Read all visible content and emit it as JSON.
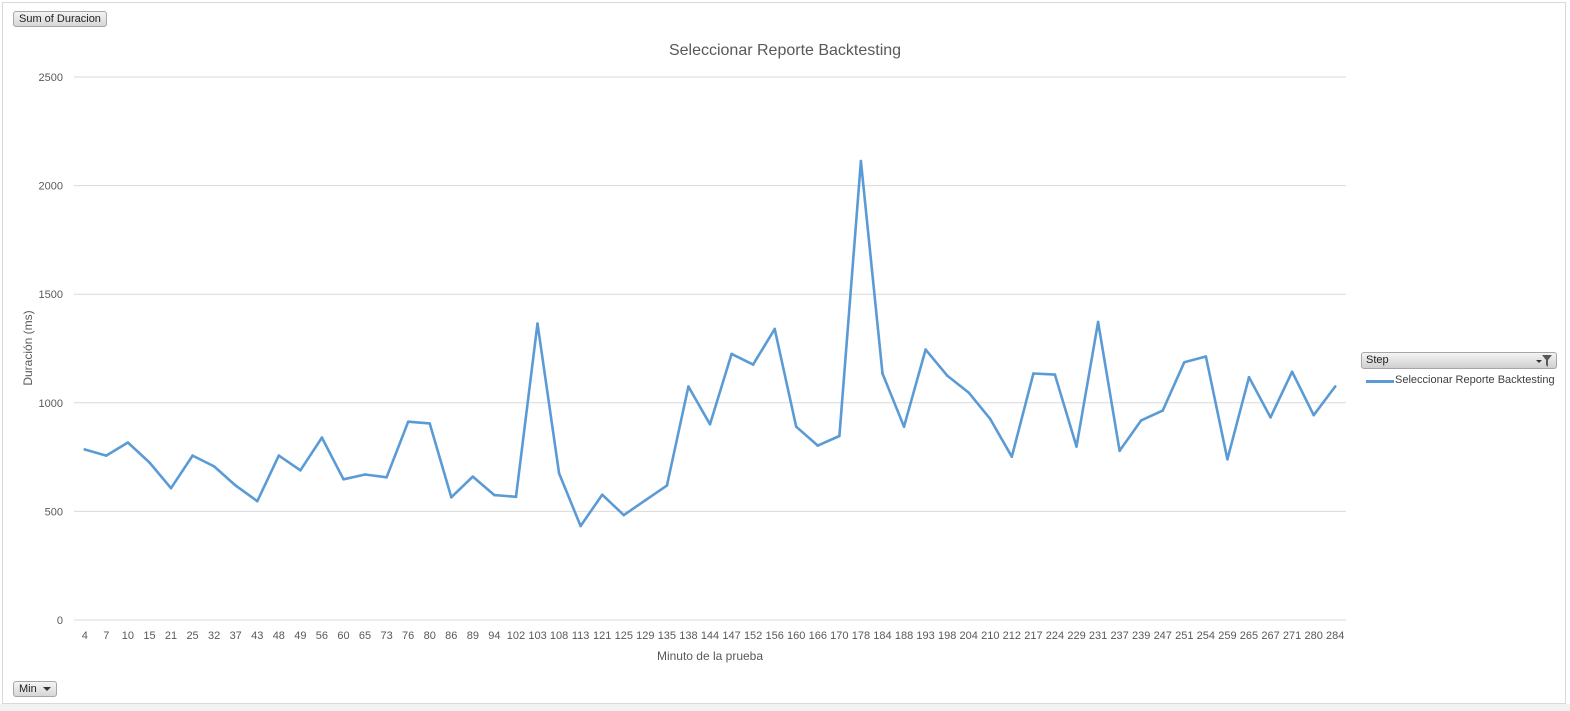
{
  "controls": {
    "value_field": "Sum of Duracion",
    "axis_field": "Min",
    "legend_field": "Step"
  },
  "colors": {
    "series": "#5b9bd5",
    "grid": "#d9d9d9"
  },
  "chart_data": {
    "type": "line",
    "title": "Seleccionar Reporte Backtesting",
    "xlabel": "Minuto de la prueba",
    "ylabel": "Duración (ms)",
    "ylim": [
      0,
      2500
    ],
    "yticks": [
      0,
      500,
      1000,
      1500,
      2000,
      2500
    ],
    "grid": true,
    "legend_position": "right",
    "categories": [
      "4",
      "7",
      "10",
      "15",
      "21",
      "25",
      "32",
      "37",
      "43",
      "48",
      "49",
      "56",
      "60",
      "65",
      "73",
      "76",
      "80",
      "86",
      "89",
      "94",
      "102",
      "103",
      "108",
      "113",
      "121",
      "125",
      "129",
      "135",
      "138",
      "144",
      "147",
      "152",
      "156",
      "160",
      "166",
      "170",
      "178",
      "184",
      "188",
      "193",
      "198",
      "204",
      "210",
      "212",
      "217",
      "224",
      "229",
      "231",
      "237",
      "239",
      "247",
      "251",
      "254",
      "259",
      "265",
      "267",
      "271",
      "280",
      "284"
    ],
    "series": [
      {
        "name": "Seleccionar Reporte Backtesting",
        "values": [
          785,
          757,
          817,
          725,
          607,
          757,
          707,
          619,
          547,
          757,
          689,
          840,
          648,
          670,
          657,
          913,
          905,
          565,
          660,
          575,
          567,
          1365,
          675,
          433,
          577,
          483,
          551,
          619,
          1075,
          901,
          1225,
          1176,
          1340,
          890,
          803,
          847,
          2113,
          1135,
          890,
          1245,
          1125,
          1047,
          925,
          752,
          1135,
          1130,
          799,
          1372,
          779,
          919,
          964,
          1187,
          1213,
          740,
          1118,
          933,
          1143,
          943,
          1075
        ]
      }
    ]
  }
}
